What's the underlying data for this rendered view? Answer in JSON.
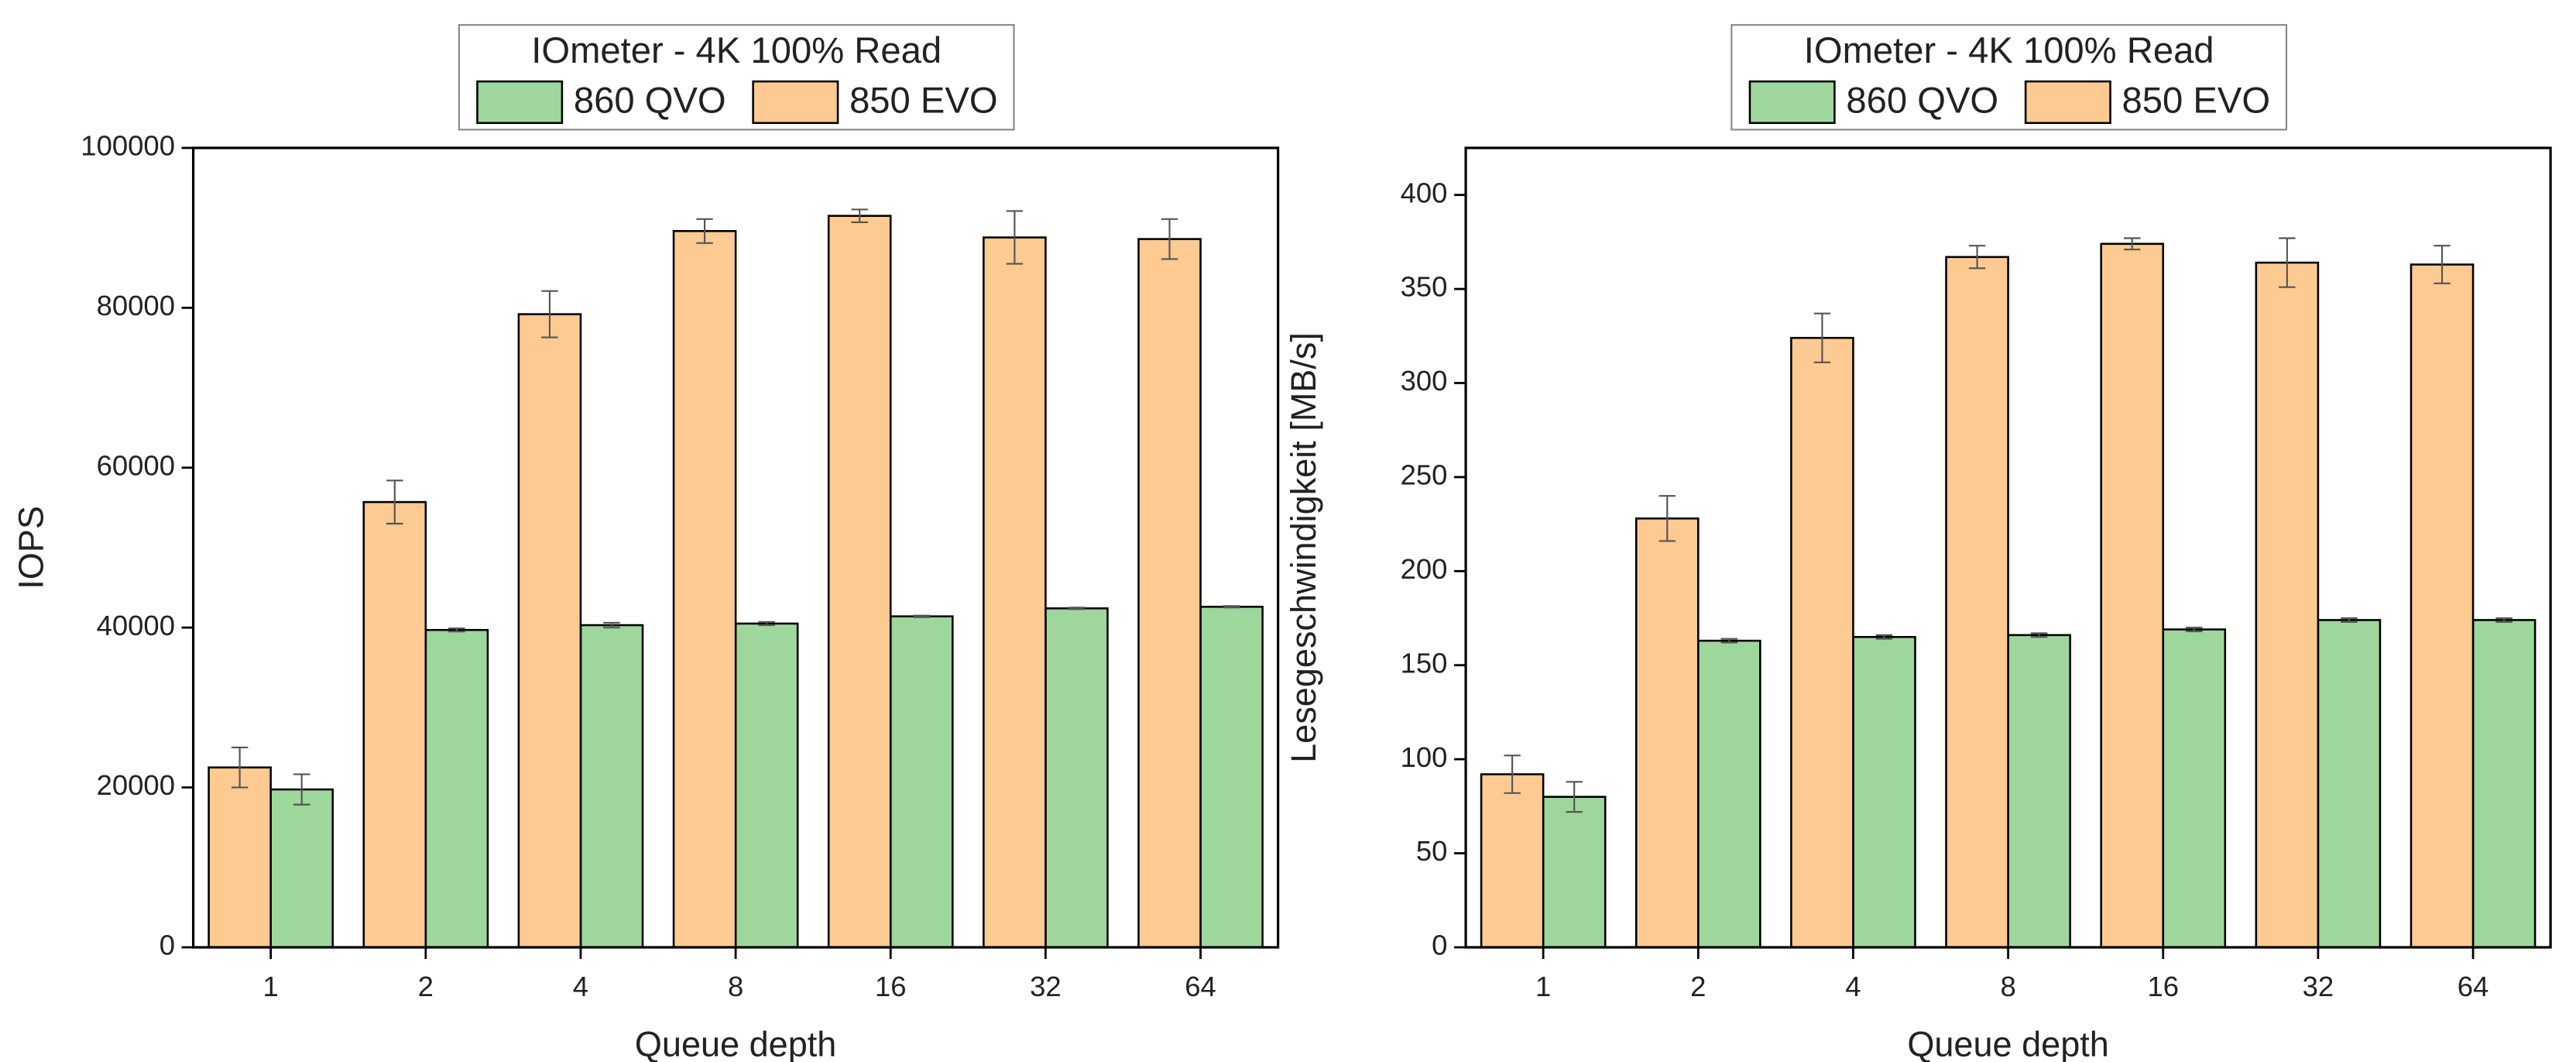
{
  "chart_data": [
    {
      "type": "bar",
      "legend_title": "IOmeter - 4K 100% Read",
      "x_label": "Queue depth",
      "y_label": "IOPS",
      "categories": [
        "1",
        "2",
        "4",
        "8",
        "16",
        "32",
        "64"
      ],
      "series": [
        {
          "name": "860 QVO",
          "color": "#9ed79c",
          "values": [
            19750,
            39700,
            40300,
            40500,
            41400,
            42400,
            42600
          ],
          "errors": [
            1900,
            200,
            300,
            200,
            100,
            100,
            100
          ]
        },
        {
          "name": "850 EVO",
          "color": "#fdca91",
          "values": [
            22500,
            55700,
            79200,
            89600,
            91500,
            88800,
            88600
          ],
          "errors": [
            2500,
            2700,
            2900,
            1500,
            800,
            3300,
            2500
          ]
        }
      ],
      "ylim": [
        0,
        100000
      ],
      "yticks": [
        0,
        20000,
        40000,
        60000,
        80000,
        100000
      ],
      "grid": false
    },
    {
      "type": "bar",
      "legend_title": "IOmeter - 4K 100% Read",
      "x_label": "Queue depth",
      "y_label": "Lesegeschwindigkeit [MB/s]",
      "categories": [
        "1",
        "2",
        "4",
        "8",
        "16",
        "32",
        "64"
      ],
      "series": [
        {
          "name": "860 QVO",
          "color": "#9ed79c",
          "values": [
            80,
            163,
            165,
            166,
            169,
            174,
            174
          ],
          "errors": [
            8,
            1,
            1,
            1,
            1,
            1,
            1
          ]
        },
        {
          "name": "850 EVO",
          "color": "#fdca91",
          "values": [
            92,
            228,
            324,
            367,
            374,
            364,
            363
          ],
          "errors": [
            10,
            12,
            13,
            6,
            3,
            13,
            10
          ]
        }
      ],
      "ylim": [
        0,
        425
      ],
      "yticks": [
        0,
        50,
        100,
        150,
        200,
        250,
        300,
        350,
        400
      ],
      "grid": false
    }
  ]
}
